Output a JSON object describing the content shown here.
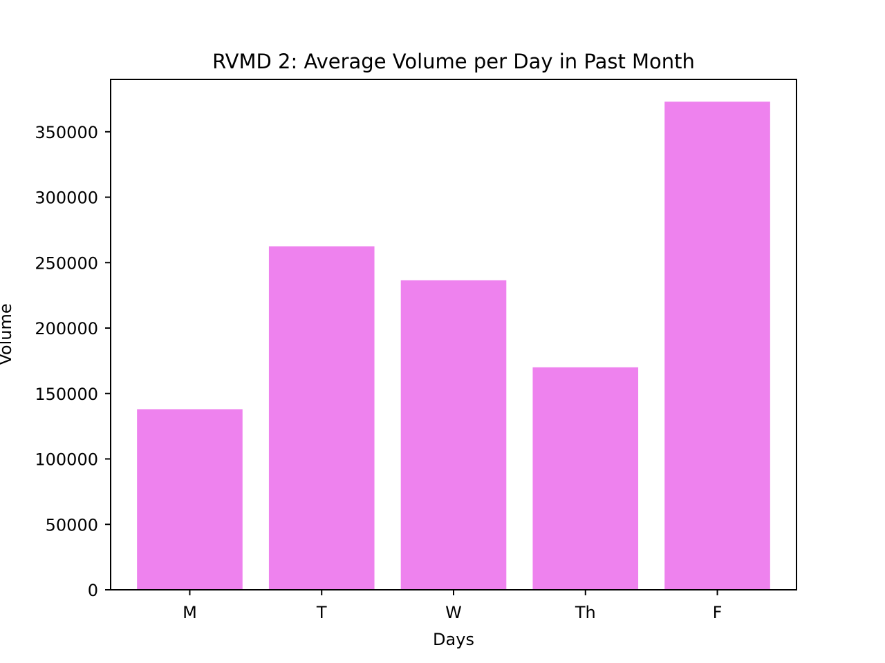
{
  "chart_data": {
    "type": "bar",
    "title": "RVMD 2: Average Volume per Day in Past Month",
    "xlabel": "Days",
    "ylabel": "Volume",
    "categories": [
      "M",
      "T",
      "W",
      "Th",
      "F"
    ],
    "values": [
      138000,
      262500,
      236500,
      170000,
      373000
    ],
    "ylim": [
      0,
      390000
    ],
    "yticks": [
      0,
      50000,
      100000,
      150000,
      200000,
      250000,
      300000,
      350000
    ],
    "ytick_labels": [
      "0",
      "50000",
      "100000",
      "150000",
      "200000",
      "250000",
      "300000",
      "350000"
    ],
    "grid": false,
    "bar_color": "#ee82ee"
  }
}
